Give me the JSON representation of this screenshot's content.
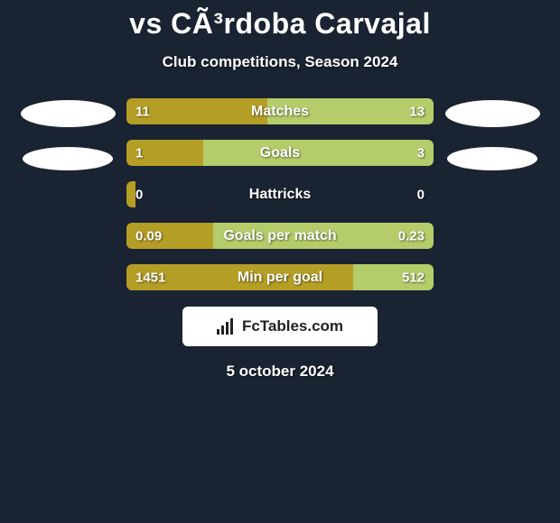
{
  "title": "vs CÃ³rdoba Carvajal",
  "subtitle": "Club competitions, Season 2024",
  "colors": {
    "left": "#b59e26",
    "right": "#b4cc6a",
    "background": "#1a2332"
  },
  "stats": [
    {
      "label": "Matches",
      "left_val": "11",
      "right_val": "13",
      "left_pct": 45.8,
      "right_pct": 54.2
    },
    {
      "label": "Goals",
      "left_val": "1",
      "right_val": "3",
      "left_pct": 25.0,
      "right_pct": 75.0
    },
    {
      "label": "Hattricks",
      "left_val": "0",
      "right_val": "0",
      "left_pct": 3.0,
      "right_pct": 0.0
    },
    {
      "label": "Goals per match",
      "left_val": "0.09",
      "right_val": "0.23",
      "left_pct": 28.1,
      "right_pct": 71.9
    },
    {
      "label": "Min per goal",
      "left_val": "1451",
      "right_val": "512",
      "left_pct": 73.9,
      "right_pct": 26.1
    }
  ],
  "brand": "FcTables.com",
  "date": "5 october 2024"
}
